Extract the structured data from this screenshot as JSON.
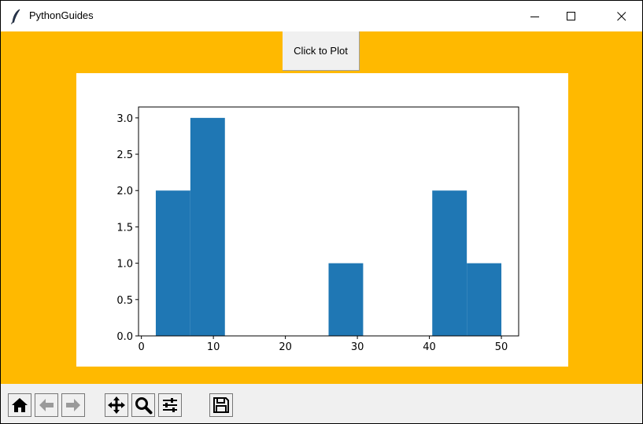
{
  "window": {
    "title": "PythonGuides",
    "icon": "feather-icon",
    "controls": [
      "minimize-icon",
      "maximize-icon",
      "close-icon"
    ]
  },
  "main": {
    "plot_button_label": "Click to Plot",
    "background_color": "#ffb900"
  },
  "chart_data": {
    "type": "bar",
    "title": "",
    "xlabel": "",
    "ylabel": "",
    "bar_color": "#1f77b4",
    "bins": [
      {
        "x0": 2.0,
        "x1": 6.8,
        "value": 2
      },
      {
        "x0": 6.8,
        "x1": 11.6,
        "value": 3
      },
      {
        "x0": 11.6,
        "x1": 16.4,
        "value": 0
      },
      {
        "x0": 16.4,
        "x1": 21.2,
        "value": 0
      },
      {
        "x0": 21.2,
        "x1": 26.0,
        "value": 0
      },
      {
        "x0": 26.0,
        "x1": 30.8,
        "value": 1
      },
      {
        "x0": 30.8,
        "x1": 35.6,
        "value": 0
      },
      {
        "x0": 35.6,
        "x1": 40.4,
        "value": 0
      },
      {
        "x0": 40.4,
        "x1": 45.2,
        "value": 2
      },
      {
        "x0": 45.2,
        "x1": 50.0,
        "value": 1
      }
    ],
    "xlim": [
      -0.4,
      52.4
    ],
    "ylim": [
      0,
      3.15
    ],
    "x_ticks": [
      "0",
      "10",
      "20",
      "30",
      "40",
      "50"
    ],
    "y_ticks": [
      "0.0",
      "0.5",
      "1.0",
      "1.5",
      "2.0",
      "2.5",
      "3.0"
    ]
  },
  "toolbar": {
    "buttons": [
      {
        "name": "home-icon",
        "label": "Home"
      },
      {
        "name": "back-arrow-icon",
        "label": "Back"
      },
      {
        "name": "forward-arrow-icon",
        "label": "Forward"
      },
      {
        "name": "pan-icon",
        "label": "Pan"
      },
      {
        "name": "zoom-icon",
        "label": "Zoom"
      },
      {
        "name": "configure-subplots-icon",
        "label": "Subplots"
      },
      {
        "name": "save-icon",
        "label": "Save"
      }
    ]
  }
}
